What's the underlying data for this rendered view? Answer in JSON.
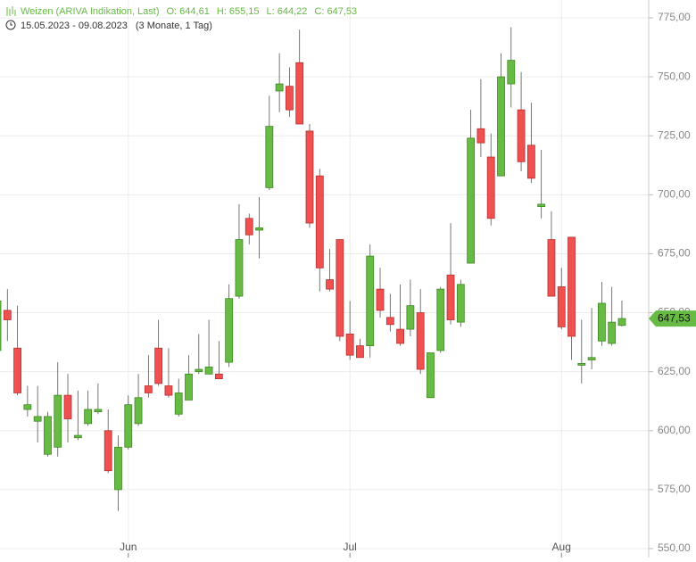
{
  "chart_data": {
    "type": "candlestick",
    "title": "Weizen (ARIVA Indikation, Last)",
    "header_values": [
      "O: 644,61",
      "H: 655,15",
      "L: 644,22",
      "C: 647,53"
    ],
    "subtitle": "15.05.2023 - 09.08.2023",
    "period": "(3 Monate, 1 Tag)",
    "categories": [
      null,
      null,
      null,
      null,
      null,
      null,
      null,
      null,
      null,
      null,
      null,
      null,
      null,
      "Jun",
      null,
      null,
      null,
      null,
      null,
      null,
      null,
      null,
      null,
      null,
      null,
      null,
      null,
      null,
      null,
      null,
      null,
      null,
      null,
      null,
      null,
      "Jul",
      null,
      null,
      null,
      null,
      null,
      null,
      null,
      null,
      null,
      null,
      null,
      null,
      null,
      null,
      null,
      null,
      null,
      null,
      null,
      null,
      "Aug",
      null,
      null,
      null,
      null,
      null,
      null
    ],
    "open": [
      634,
      651,
      635,
      609,
      604,
      590,
      593,
      615,
      597,
      603,
      608,
      600,
      575,
      593,
      603,
      619,
      635,
      619,
      607,
      613,
      625,
      624,
      624,
      629,
      657,
      690,
      685,
      703,
      744,
      746,
      756,
      727,
      708,
      664,
      681,
      641,
      636,
      636,
      660,
      648,
      643,
      643,
      650,
      614,
      634,
      666,
      646,
      671,
      728,
      716,
      708,
      747,
      736,
      721,
      695,
      681,
      661,
      682,
      628,
      630,
      638,
      637,
      644.61
    ],
    "high": [
      657,
      660,
      653,
      619,
      619,
      608,
      629,
      624,
      617,
      617,
      620,
      609,
      598,
      615,
      624,
      632,
      647,
      635,
      622,
      632,
      641,
      647,
      638,
      662,
      696,
      692,
      699,
      742,
      760,
      754,
      770,
      730,
      711,
      677,
      681,
      655,
      639,
      679,
      669,
      658,
      662,
      664,
      660,
      633,
      661,
      688,
      664,
      736,
      749,
      726,
      760,
      771,
      752,
      739,
      719,
      693,
      669,
      682,
      647,
      652,
      663,
      661,
      655.15
    ],
    "low": [
      632,
      638,
      615,
      606,
      595,
      589,
      589,
      595,
      596,
      602,
      607,
      582,
      566,
      592,
      602,
      614,
      619,
      614,
      606,
      613,
      624,
      624,
      622,
      627,
      656,
      679,
      673,
      702,
      735,
      733,
      730,
      686,
      659,
      659,
      638,
      630,
      631,
      631,
      648,
      642,
      636,
      640,
      624,
      614,
      633,
      645,
      644,
      671,
      716,
      687,
      708,
      737,
      710,
      705,
      690,
      657,
      643,
      630,
      620,
      626,
      636,
      636,
      644.22
    ],
    "close": [
      655,
      647,
      616,
      611,
      606,
      606,
      615,
      605,
      598,
      609,
      609,
      583,
      593,
      611,
      614,
      616,
      620,
      615,
      616,
      624,
      626,
      627,
      622,
      656,
      681,
      683,
      686,
      729,
      747,
      736,
      730,
      688,
      669,
      660,
      640,
      632,
      631,
      674,
      651,
      645,
      637,
      653,
      626,
      633,
      660,
      647,
      662,
      724,
      722,
      690,
      750,
      757,
      714,
      707,
      696,
      657,
      644,
      640,
      628.5,
      631,
      654,
      646,
      647.53
    ],
    "up_color": "#67bb45",
    "down_color": "#ef5050",
    "ylim": [
      550,
      775
    ],
    "yticks": [
      {
        "value": 550,
        "label": "550,00"
      },
      {
        "value": 575,
        "label": "575,00"
      },
      {
        "value": 600,
        "label": "600,00"
      },
      {
        "value": 625,
        "label": "625,00"
      },
      {
        "value": 650,
        "label": "650,00"
      },
      {
        "value": 675,
        "label": "675,00"
      },
      {
        "value": 700,
        "label": "700,00"
      },
      {
        "value": 725,
        "label": "725,00"
      },
      {
        "value": 750,
        "label": "750,00"
      },
      {
        "value": 775,
        "label": "775,00"
      }
    ],
    "last_price": {
      "value": 647.53,
      "label": "647,53"
    },
    "grid": true
  }
}
